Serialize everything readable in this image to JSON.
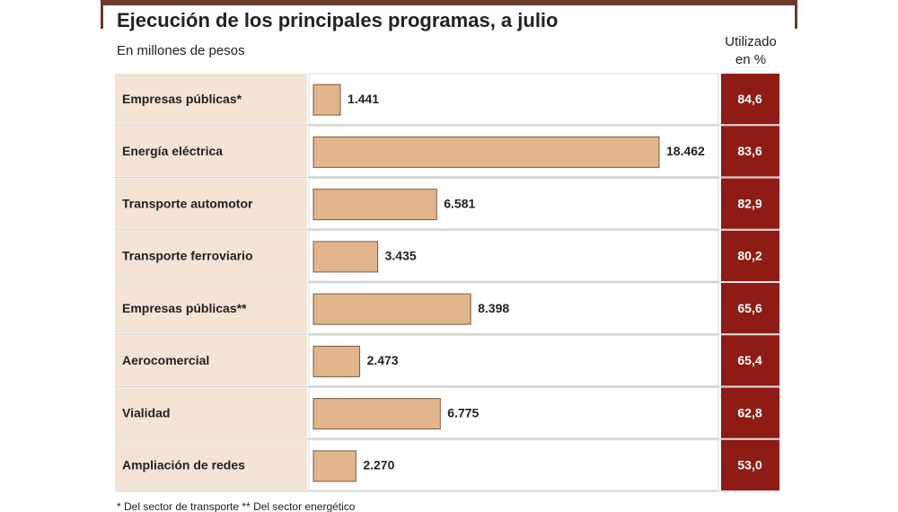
{
  "chart_data": {
    "type": "bar",
    "title": "Ejecución de los principales programas, a julio",
    "subtitle": "En millones de pesos",
    "percent_header": [
      "Utilizado",
      "en %"
    ],
    "categories": [
      "Empresas públicas*",
      "Energía eléctrica",
      "Transporte automotor",
      "Transporte ferroviario",
      "Empresas públicas**",
      "Aerocomercial",
      "Vialidad",
      "Ampliación de redes"
    ],
    "values": [
      1441,
      18462,
      6581,
      3435,
      8398,
      2473,
      6775,
      2270
    ],
    "value_labels": [
      "1.441",
      "18.462",
      "6.581",
      "3.435",
      "8.398",
      "2.473",
      "6.775",
      "2.270"
    ],
    "color": "#e2b48c",
    "percent_labels": [
      "84,6",
      "83,6",
      "82,9",
      "80,2",
      "65,6",
      "65,4",
      "62,8",
      "53,0"
    ],
    "footnote": "* Del sector de transporte  ** Del sector energético"
  }
}
